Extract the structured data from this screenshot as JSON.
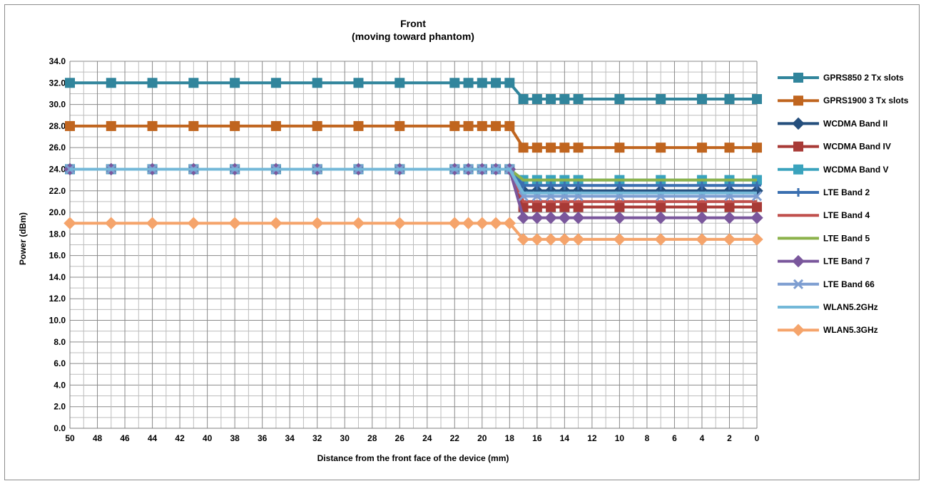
{
  "chart_data": {
    "type": "line",
    "title": "Front",
    "subtitle": "(moving toward phantom)",
    "xlabel": "Distance from the front face of the device (mm)",
    "ylabel": "Power (dBm)",
    "xlim": [
      50,
      0
    ],
    "ylim": [
      0,
      34
    ],
    "x_ticks": [
      "50",
      "48",
      "46",
      "44",
      "42",
      "40",
      "38",
      "36",
      "34",
      "32",
      "30",
      "28",
      "26",
      "24",
      "22",
      "20",
      "18",
      "16",
      "14",
      "12",
      "10",
      "8",
      "6",
      "4",
      "2",
      "0"
    ],
    "y_ticks": [
      "0.0",
      "2.0",
      "4.0",
      "6.0",
      "8.0",
      "10.0",
      "12.0",
      "14.0",
      "16.0",
      "18.0",
      "20.0",
      "22.0",
      "24.0",
      "26.0",
      "28.0",
      "30.0",
      "32.0",
      "34.0"
    ],
    "grid": true,
    "legend_position": "right",
    "x": [
      50,
      47,
      44,
      41,
      38,
      35,
      32,
      29,
      26,
      22,
      21,
      20,
      19,
      18,
      17,
      16,
      15,
      14,
      13,
      10,
      7,
      4,
      2,
      0
    ],
    "series": [
      {
        "name": "GPRS850 2 Tx slots",
        "color": "#31859c",
        "marker": "square",
        "values": [
          32,
          32,
          32,
          32,
          32,
          32,
          32,
          32,
          32,
          32,
          32,
          32,
          32,
          32,
          30.5,
          30.5,
          30.5,
          30.5,
          30.5,
          30.5,
          30.5,
          30.5,
          30.5,
          30.5
        ]
      },
      {
        "name": "GPRS1900 3 Tx slots",
        "color": "#c0651f",
        "marker": "square",
        "values": [
          28,
          28,
          28,
          28,
          28,
          28,
          28,
          28,
          28,
          28,
          28,
          28,
          28,
          28,
          26,
          26,
          26,
          26,
          26,
          26,
          26,
          26,
          26,
          26
        ]
      },
      {
        "name": "WCDMA Band II",
        "color": "#254f7d",
        "marker": "diamond",
        "values": [
          24,
          24,
          24,
          24,
          24,
          24,
          24,
          24,
          24,
          24,
          24,
          24,
          24,
          24,
          22,
          22,
          22,
          22,
          22,
          22,
          22,
          22,
          22,
          22
        ]
      },
      {
        "name": "WCDMA Band IV",
        "color": "#a83a36",
        "marker": "square",
        "values": [
          24,
          24,
          24,
          24,
          24,
          24,
          24,
          24,
          24,
          24,
          24,
          24,
          24,
          24,
          20.5,
          20.5,
          20.5,
          20.5,
          20.5,
          20.5,
          20.5,
          20.5,
          20.5,
          20.5
        ]
      },
      {
        "name": "WCDMA Band V",
        "color": "#3aa3bd",
        "marker": "square",
        "values": [
          24,
          24,
          24,
          24,
          24,
          24,
          24,
          24,
          24,
          24,
          24,
          24,
          24,
          24,
          23,
          23,
          23,
          23,
          23,
          23,
          23,
          23,
          23,
          23
        ]
      },
      {
        "name": "LTE Band 2",
        "color": "#3a6fb0",
        "marker": "plus",
        "values": [
          24,
          24,
          24,
          24,
          24,
          24,
          24,
          24,
          24,
          24,
          24,
          24,
          24,
          24,
          22.5,
          22.5,
          22.5,
          22.5,
          22.5,
          22.5,
          22.5,
          22.5,
          22.5,
          22.5
        ]
      },
      {
        "name": "LTE Band 4",
        "color": "#c0504d",
        "marker": "none",
        "values": [
          24,
          24,
          24,
          24,
          24,
          24,
          24,
          24,
          24,
          24,
          24,
          24,
          24,
          24,
          21,
          21,
          21,
          21,
          21,
          21,
          21,
          21,
          21,
          21
        ]
      },
      {
        "name": "LTE Band 5",
        "color": "#8cb24b",
        "marker": "none",
        "values": [
          24,
          24,
          24,
          24,
          24,
          24,
          24,
          24,
          24,
          24,
          24,
          24,
          24,
          24,
          23,
          23,
          23,
          23,
          23,
          23,
          23,
          23,
          23,
          23
        ]
      },
      {
        "name": "LTE Band 7",
        "color": "#7a579c",
        "marker": "diamond",
        "values": [
          24,
          24,
          24,
          24,
          24,
          24,
          24,
          24,
          24,
          24,
          24,
          24,
          24,
          24,
          19.5,
          19.5,
          19.5,
          19.5,
          19.5,
          19.5,
          19.5,
          19.5,
          19.5,
          19.5
        ]
      },
      {
        "name": "LTE Band 66",
        "color": "#7e9ed1",
        "marker": "x",
        "values": [
          24,
          24,
          24,
          24,
          24,
          24,
          24,
          24,
          24,
          24,
          24,
          24,
          24,
          24,
          21.5,
          21.5,
          21.5,
          21.5,
          21.5,
          21.5,
          21.5,
          21.5,
          21.5,
          21.5
        ]
      },
      {
        "name": "WLAN5.2GHz",
        "color": "#73b8d8",
        "marker": "none",
        "values": [
          24,
          24,
          24,
          24,
          24,
          24,
          24,
          24,
          24,
          24,
          24,
          24,
          24,
          24,
          21.8,
          21.8,
          21.8,
          21.8,
          21.8,
          21.8,
          21.8,
          21.8,
          21.8,
          21.8
        ]
      },
      {
        "name": "WLAN5.3GHz",
        "color": "#f5a46b",
        "marker": "diamond",
        "values": [
          19,
          19,
          19,
          19,
          19,
          19,
          19,
          19,
          19,
          19,
          19,
          19,
          19,
          19,
          17.5,
          17.5,
          17.5,
          17.5,
          17.5,
          17.5,
          17.5,
          17.5,
          17.5,
          17.5
        ]
      }
    ]
  }
}
